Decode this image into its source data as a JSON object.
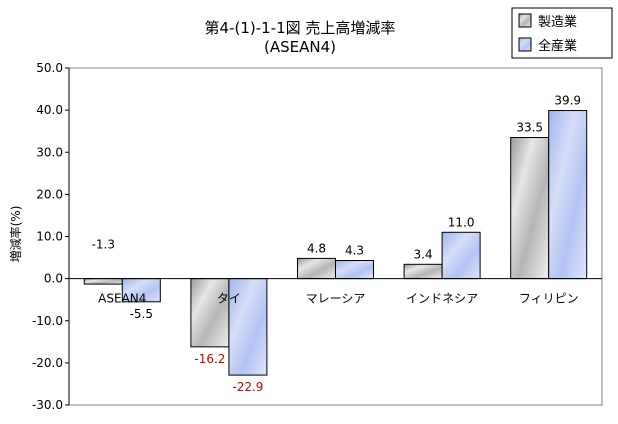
{
  "chart_data": {
    "type": "bar",
    "title": "第4-(1)-1-1図 売上高増減率",
    "subtitle": "(ASEAN4)",
    "ylabel": "増減率(%)",
    "ylim": [
      -30,
      50
    ],
    "ytick_step": 10,
    "ytick_labels": [
      "50.0",
      "40.0",
      "30.0",
      "20.0",
      "10.0",
      "0.0",
      "-10.0",
      "-20.0",
      "-30.0"
    ],
    "categories": [
      "ASEAN4",
      "タイ",
      "マレーシア",
      "インドネシア",
      "フィリピン"
    ],
    "series": [
      {
        "name": "製造業",
        "values": [
          -1.3,
          -16.2,
          4.8,
          3.4,
          33.5
        ],
        "labels": [
          "-1.3",
          "-16.2",
          "4.8",
          "3.4",
          "33.5"
        ],
        "fill": "#d0d0d0"
      },
      {
        "name": "全産業",
        "values": [
          -5.5,
          -22.9,
          4.3,
          11.0,
          39.9
        ],
        "labels": [
          "-5.5",
          "-22.9",
          "4.3",
          "11.0",
          "39.9"
        ],
        "fill": "#b9c8f0"
      }
    ],
    "negative_label_colors": {
      "tai": "#cc0000"
    },
    "grid": false,
    "legend_position": "top-right"
  }
}
